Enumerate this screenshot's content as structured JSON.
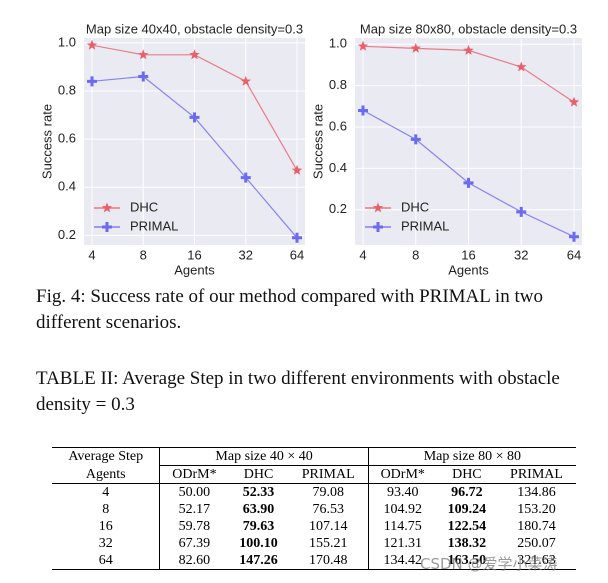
{
  "chart_data": [
    {
      "type": "line",
      "title": "Map size 40x40, obstacle density=0.3",
      "categories": [
        "4",
        "8",
        "16",
        "32",
        "64"
      ],
      "series": [
        {
          "name": "DHC",
          "color": "#e9606b",
          "marker": "star",
          "values": [
            0.99,
            0.95,
            0.95,
            0.84,
            0.47
          ]
        },
        {
          "name": "PRIMAL",
          "color": "#6a6af2",
          "marker": "plus",
          "values": [
            0.84,
            0.86,
            0.69,
            0.44,
            0.19
          ]
        }
      ],
      "xlabel": "Agents",
      "ylabel": "Success rate",
      "ylim": [
        0.16,
        1.02
      ],
      "yticks": [
        0.2,
        0.4,
        0.6,
        0.8,
        {
          "value": 1,
          "label": "1.0"
        }
      ],
      "grid": true,
      "legend": "lower left"
    },
    {
      "type": "line",
      "title": "Map size 80x80, obstacle density=0.3",
      "categories": [
        "4",
        "8",
        "16",
        "32",
        "64"
      ],
      "series": [
        {
          "name": "DHC",
          "color": "#e9606b",
          "marker": "star",
          "values": [
            0.99,
            0.98,
            0.97,
            0.89,
            0.72
          ]
        },
        {
          "name": "PRIMAL",
          "color": "#6a6af2",
          "marker": "plus",
          "values": [
            0.68,
            0.54,
            0.33,
            0.19,
            0.07
          ]
        }
      ],
      "xlabel": "Agents",
      "ylabel": "Success rate",
      "ylim": [
        0.03,
        1.03
      ],
      "yticks": [
        0.2,
        0.4,
        0.6,
        0.8,
        {
          "value": 1,
          "label": "1.0"
        }
      ],
      "grid": true,
      "legend": "lower left"
    }
  ],
  "caption": "Fig. 4: Success rate of our method compared with PRIMAL in two different scenarios.",
  "table_title": "TABLE II: Average Step in two different environments with obstacle density = 0.3",
  "table": {
    "header": [
      "Average Step",
      "Map size 40 × 40",
      "Map size 80 × 80"
    ],
    "subheader": [
      "Agents",
      "ODrM*",
      "DHC",
      "PRIMAL",
      "ODrM*",
      "DHC",
      "PRIMAL"
    ],
    "rows": [
      [
        "4",
        "50.00",
        "52.33",
        "79.08",
        "93.40",
        "96.72",
        "134.86"
      ],
      [
        "8",
        "52.17",
        "63.90",
        "76.53",
        "104.92",
        "109.24",
        "153.20"
      ],
      [
        "16",
        "59.78",
        "79.63",
        "107.14",
        "114.75",
        "122.54",
        "180.74"
      ],
      [
        "32",
        "67.39",
        "100.10",
        "155.21",
        "121.31",
        "138.32",
        "250.07"
      ],
      [
        "64",
        "82.60",
        "147.26",
        "170.48",
        "134.42",
        "163.50",
        "321.63"
      ]
    ]
  },
  "watermark": "CSDN @爱学小菜涛"
}
